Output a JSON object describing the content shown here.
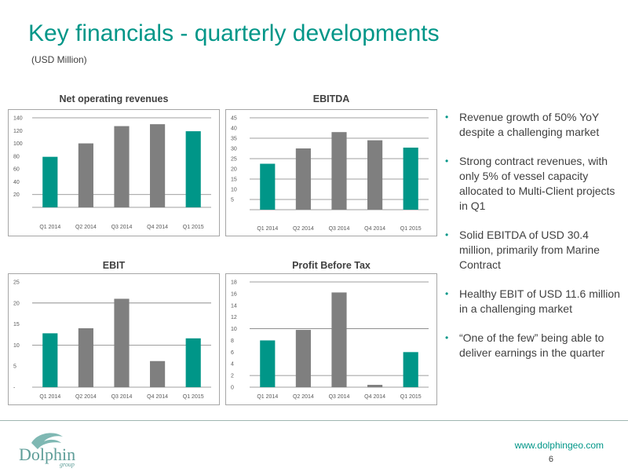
{
  "slide": {
    "title": "Key financials - quarterly developments",
    "subtitle": "(USD Million)",
    "website": "www.dolphingeo.com",
    "page_number": "6",
    "logo_text": "Dolphin",
    "logo_subtext": "group"
  },
  "colors": {
    "accent": "#009688",
    "bar_grey": "#7f7f7f",
    "bar_teal": "#009688"
  },
  "bullets": [
    "Revenue growth of 50% YoY despite a challenging market",
    "Strong contract revenues, with only 5% of vessel capacity allocated to Multi-Client projects in Q1",
    "Solid EBITDA of USD 30.4 million, primarily from Marine Contract",
    "Healthy EBIT of USD 11.6 million in a challenging market",
    "“One of the few” being able to deliver earnings in the quarter"
  ],
  "chart_data": [
    {
      "type": "bar",
      "title": "Net operating revenues",
      "categories": [
        "Q1 2014",
        "Q2 2014",
        "Q3 2014",
        "Q4 2014",
        "Q1 2015"
      ],
      "values": [
        79,
        100,
        127,
        130,
        119
      ],
      "bar_colors": [
        "#009688",
        "#7f7f7f",
        "#7f7f7f",
        "#7f7f7f",
        "#009688"
      ],
      "ylim": [
        0,
        140
      ],
      "yticks": [
        "20",
        "40",
        "60",
        "80",
        "100",
        "120",
        "140"
      ],
      "ytick_values": [
        20,
        40,
        60,
        80,
        100,
        120,
        140
      ],
      "gridlines": [
        20,
        140
      ]
    },
    {
      "type": "bar",
      "title": "EBITDA",
      "categories": [
        "Q1 2014",
        "Q2 2014",
        "Q3 2014",
        "Q4 2014",
        "Q1 2015"
      ],
      "values": [
        22.5,
        30,
        38,
        34,
        30.4
      ],
      "bar_colors": [
        "#009688",
        "#7f7f7f",
        "#7f7f7f",
        "#7f7f7f",
        "#009688"
      ],
      "ylim": [
        0,
        45
      ],
      "yticks": [
        "5",
        "10",
        "15",
        "20",
        "25",
        "30",
        "35",
        "40",
        "45"
      ],
      "ytick_values": [
        5,
        10,
        15,
        20,
        25,
        30,
        35,
        40,
        45
      ],
      "gridlines": [
        5,
        15,
        25,
        35,
        45
      ]
    },
    {
      "type": "bar",
      "title": "EBIT",
      "categories": [
        "Q1 2014",
        "Q2 2014",
        "Q3 2014",
        "Q4 2014",
        "Q1 2015"
      ],
      "values": [
        12.8,
        14,
        21,
        6.2,
        11.6
      ],
      "bar_colors": [
        "#009688",
        "#7f7f7f",
        "#7f7f7f",
        "#7f7f7f",
        "#009688"
      ],
      "ylim": [
        0,
        25
      ],
      "yticks": [
        "-",
        "5",
        "10",
        "15",
        "20",
        "25"
      ],
      "ytick_values": [
        0,
        5,
        10,
        15,
        20,
        25
      ],
      "gridlines": [
        10,
        20
      ]
    },
    {
      "type": "bar",
      "title": "Profit Before Tax",
      "categories": [
        "Q1 2014",
        "Q2 2014",
        "Q3 2014",
        "Q4 2014",
        "Q1 2015"
      ],
      "values": [
        8,
        9.8,
        16.2,
        0.4,
        6
      ],
      "bar_colors": [
        "#009688",
        "#7f7f7f",
        "#7f7f7f",
        "#7f7f7f",
        "#009688"
      ],
      "ylim": [
        0,
        18
      ],
      "yticks": [
        "0",
        "2",
        "4",
        "6",
        "8",
        "10",
        "12",
        "14",
        "16",
        "18"
      ],
      "ytick_values": [
        0,
        2,
        4,
        6,
        8,
        10,
        12,
        14,
        16,
        18
      ],
      "gridlines": [
        2,
        10,
        18
      ]
    }
  ]
}
